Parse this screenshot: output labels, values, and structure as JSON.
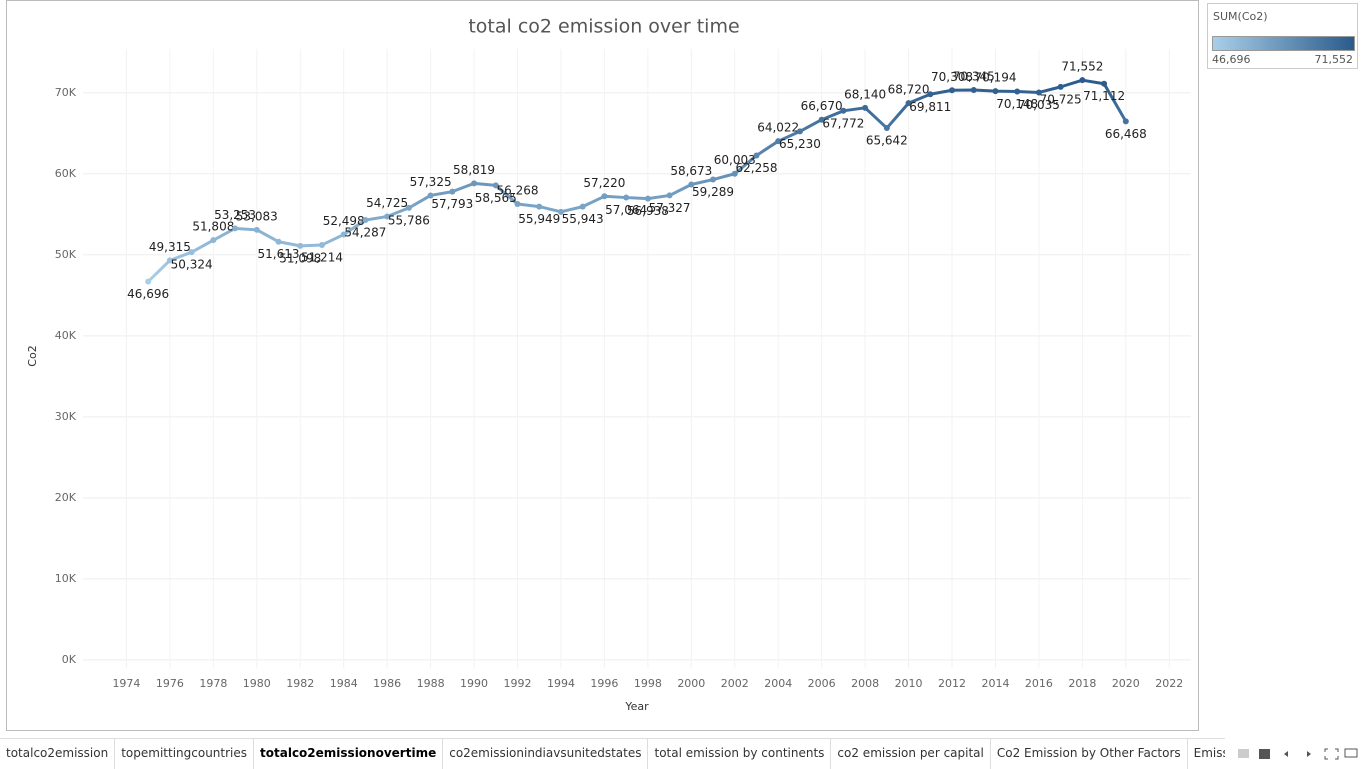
{
  "chart_data": {
    "type": "line",
    "title": "total co2 emission over time",
    "x_label": "Year",
    "y_label": "Co2",
    "x": [
      1975,
      1976,
      1977,
      1978,
      1979,
      1980,
      1981,
      1982,
      1983,
      1984,
      1985,
      1986,
      1987,
      1988,
      1989,
      1990,
      1991,
      1992,
      1993,
      1994,
      1995,
      1996,
      1997,
      1998,
      1999,
      2000,
      2001,
      2002,
      2003,
      2004,
      2005,
      2006,
      2007,
      2008,
      2009,
      2010,
      2011,
      2012,
      2013,
      2014,
      2015,
      2016,
      2017,
      2018,
      2019,
      2020
    ],
    "values": [
      46696,
      49315,
      50324,
      51808,
      53253,
      53083,
      51613,
      51098,
      51214,
      52498,
      54287,
      54725,
      55786,
      57325,
      57793,
      58819,
      58565,
      56268,
      55949,
      55300,
      55943,
      57220,
      57064,
      56938,
      57327,
      58673,
      59289,
      60003,
      62258,
      64022,
      65230,
      66670,
      67772,
      68140,
      65642,
      68720,
      69811,
      70308,
      70345,
      70194,
      70148,
      70035,
      70725,
      71552,
      71112,
      66468
    ],
    "value_labels": [
      "46,696",
      "49,315",
      "50,324",
      "51,808",
      "53,253",
      "53,083",
      "51,613",
      "51,098",
      "51,214",
      "52,498",
      "54,287",
      "54,725",
      "55,786",
      "57,325",
      "57,793",
      "58,819",
      "58,565",
      "56,268",
      "55,949",
      null,
      "55,943",
      "57,220",
      "57,064",
      "56,938",
      "57,327",
      "58,673",
      "59,289",
      "60,003",
      "62,258",
      "64,022",
      "65,230",
      "66,670",
      "67,772",
      "68,140",
      "65,642",
      "68,720",
      "69,811",
      "70,308",
      "70,345",
      "70,194",
      "70,148",
      "70,035",
      "70,725",
      "71,552",
      "71,112",
      "66,468"
    ],
    "xlim": [
      1972,
      2023
    ],
    "xticks": [
      1974,
      1976,
      1978,
      1980,
      1982,
      1984,
      1986,
      1988,
      1990,
      1992,
      1994,
      1996,
      1998,
      2000,
      2002,
      2004,
      2006,
      2008,
      2010,
      2012,
      2014,
      2016,
      2018,
      2020,
      2022
    ],
    "ylim": [
      -1000,
      75400
    ],
    "yticks": [
      {
        "value": 0,
        "label": "0K"
      },
      {
        "value": 10000,
        "label": "10K"
      },
      {
        "value": 20000,
        "label": "20K"
      },
      {
        "value": 30000,
        "label": "30K"
      },
      {
        "value": 40000,
        "label": "40K"
      },
      {
        "value": 50000,
        "label": "50K"
      },
      {
        "value": 60000,
        "label": "60K"
      },
      {
        "value": 70000,
        "label": "70K"
      }
    ],
    "grid": true,
    "color_legend": {
      "title": "SUM(Co2)",
      "range": [
        {
          "value": 46696,
          "label": "46,696"
        },
        {
          "value": 71552,
          "label": "71,552"
        }
      ],
      "colors": [
        "#a9cfe8",
        "#2b5b8c"
      ]
    }
  },
  "tabs": {
    "items": [
      "totalco2emission",
      "topemittingcountries",
      "totalco2emissionovertime",
      "co2emissionindiavsunitedstates",
      "total emission by continents",
      "co2 emission per capital",
      "Co2 Emission by Other Factors",
      "Emission Rate by"
    ],
    "active": 2
  }
}
